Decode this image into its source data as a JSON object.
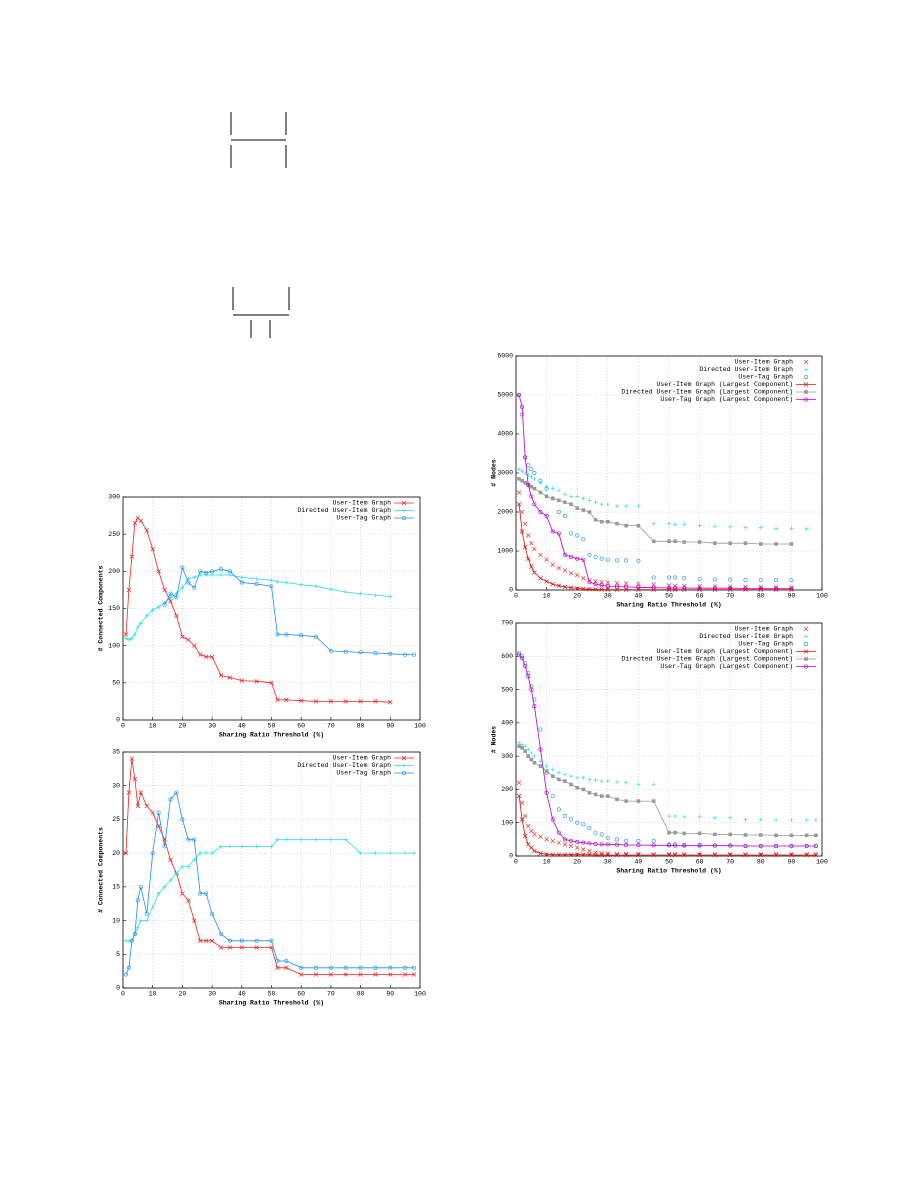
{
  "chart_data": [
    {
      "type": "line",
      "xlabel": "Sharing Ratio Threshold (%)",
      "ylabel": "# Connected Components",
      "x": [
        1,
        2,
        3,
        4,
        5,
        6,
        8,
        10,
        12,
        14,
        16,
        18,
        20,
        22,
        24,
        26,
        28,
        30,
        33,
        36,
        40,
        45,
        50,
        52,
        55,
        60,
        65,
        70,
        75,
        80,
        85,
        90,
        95,
        98
      ],
      "xlim": [
        0,
        100
      ],
      "xticks": [
        0,
        10,
        20,
        30,
        40,
        50,
        60,
        70,
        80,
        90,
        100
      ],
      "ylim": [
        0,
        300
      ],
      "yticks": [
        0,
        50,
        100,
        150,
        200,
        250,
        300
      ],
      "grid": true,
      "legend": "top-right",
      "series": [
        {
          "name": "User-Item Graph",
          "color": "#ee2222",
          "marker": "x",
          "line": true,
          "values": [
            115,
            175,
            220,
            265,
            272,
            268,
            255,
            230,
            200,
            175,
            160,
            140,
            112,
            108,
            100,
            88,
            85,
            85,
            60,
            57,
            53,
            52,
            50,
            27,
            27,
            26,
            25,
            25,
            25,
            25,
            25,
            24,
            null,
            null
          ]
        },
        {
          "name": "Directed User-Item Graph",
          "color": "#33dde0",
          "marker": "plus",
          "line": true,
          "values": [
            110,
            108,
            110,
            115,
            125,
            130,
            140,
            148,
            152,
            158,
            165,
            170,
            178,
            190,
            192,
            195,
            195,
            195,
            195,
            195,
            192,
            190,
            188,
            186,
            185,
            182,
            180,
            176,
            172,
            170,
            168,
            166,
            null,
            null
          ]
        },
        {
          "name": "User-Tag Graph",
          "color": "#1e8ff0",
          "marker": "circle",
          "line": true,
          "values": [
            null,
            null,
            null,
            null,
            null,
            null,
            null,
            null,
            null,
            155,
            170,
            165,
            205,
            185,
            178,
            200,
            198,
            200,
            203,
            200,
            185,
            183,
            180,
            115,
            115,
            114,
            112,
            93,
            92,
            91,
            90,
            89,
            88,
            88
          ]
        }
      ]
    },
    {
      "type": "line",
      "xlabel": "Sharing Ratio Threshold (%)",
      "ylabel": "# Connected Components",
      "x": [
        1,
        2,
        3,
        4,
        5,
        6,
        8,
        10,
        12,
        14,
        16,
        18,
        20,
        22,
        24,
        26,
        28,
        30,
        33,
        36,
        40,
        45,
        50,
        52,
        55,
        60,
        65,
        70,
        75,
        80,
        85,
        90,
        95,
        98
      ],
      "xlim": [
        0,
        100
      ],
      "xticks": [
        0,
        10,
        20,
        30,
        40,
        50,
        60,
        70,
        80,
        90,
        100
      ],
      "ylim": [
        0,
        35
      ],
      "yticks": [
        0,
        5,
        10,
        15,
        20,
        25,
        30,
        35
      ],
      "grid": true,
      "legend": "top-right",
      "series": [
        {
          "name": "User-Item Graph",
          "color": "#ee2222",
          "marker": "x",
          "line": true,
          "values": [
            20,
            29,
            34,
            31,
            27,
            29,
            27,
            26,
            24,
            22,
            19,
            17,
            14,
            13,
            10,
            7,
            7,
            7,
            6,
            6,
            6,
            6,
            6,
            3,
            3,
            2,
            2,
            2,
            2,
            2,
            2,
            2,
            2,
            2
          ]
        },
        {
          "name": "Directed User-Item Graph",
          "color": "#33dde0",
          "marker": "plus",
          "line": true,
          "values": [
            7,
            7,
            7,
            8,
            9,
            10,
            10,
            12,
            14,
            15,
            16,
            17,
            18,
            18,
            19,
            20,
            20,
            20,
            21,
            21,
            21,
            21,
            21,
            22,
            22,
            22,
            22,
            22,
            22,
            20,
            20,
            20,
            20,
            20
          ]
        },
        {
          "name": "User-Tag Graph",
          "color": "#1e8ff0",
          "marker": "circle",
          "line": true,
          "values": [
            2,
            3,
            7,
            8,
            13,
            15,
            11,
            20,
            26,
            21,
            28,
            29,
            25,
            22,
            22,
            14,
            14,
            11,
            8,
            7,
            7,
            7,
            7,
            4,
            4,
            3,
            3,
            3,
            3,
            3,
            3,
            3,
            3,
            3
          ]
        }
      ]
    },
    {
      "type": "line",
      "xlabel": "Sharing Ratio Threshold (%)",
      "ylabel": "# Nodes",
      "x": [
        1,
        2,
        3,
        4,
        5,
        6,
        8,
        10,
        12,
        14,
        16,
        18,
        20,
        22,
        24,
        26,
        28,
        30,
        33,
        36,
        40,
        45,
        50,
        52,
        55,
        60,
        65,
        70,
        75,
        80,
        85,
        90,
        95,
        98
      ],
      "xlim": [
        0,
        100
      ],
      "xticks": [
        0,
        10,
        20,
        30,
        40,
        50,
        60,
        70,
        80,
        90,
        100
      ],
      "ylim": [
        0,
        6000
      ],
      "yticks": [
        0,
        1000,
        2000,
        3000,
        4000,
        5000,
        6000
      ],
      "grid": true,
      "legend": "top-right",
      "series": [
        {
          "name": "User-Item Graph",
          "color": "#ee3333",
          "marker": "x",
          "line": false,
          "values": [
            2500,
            2000,
            1700,
            1400,
            1200,
            1050,
            900,
            780,
            650,
            560,
            500,
            430,
            380,
            300,
            250,
            220,
            200,
            190,
            180,
            170,
            160,
            140,
            120,
            110,
            100,
            95,
            90,
            85,
            80,
            75,
            70,
            65,
            null,
            null
          ]
        },
        {
          "name": "Directed User-Item Graph",
          "color": "#33dde0",
          "marker": "plus",
          "line": false,
          "values": [
            3100,
            3050,
            3000,
            2950,
            2900,
            2850,
            2750,
            2650,
            2600,
            2550,
            2450,
            2400,
            2400,
            2350,
            2300,
            2250,
            2200,
            2200,
            2150,
            2150,
            2150,
            1700,
            1700,
            1680,
            1680,
            1650,
            1630,
            1620,
            1600,
            1600,
            1580,
            1580,
            1570,
            null
          ]
        },
        {
          "name": "User-Tag Graph",
          "color": "#1e8ff0",
          "marker": "circle",
          "line": false,
          "values": [
            5000,
            4500,
            3400,
            3200,
            3100,
            3000,
            2800,
            2600,
            2350,
            2000,
            1900,
            1450,
            1400,
            1300,
            900,
            850,
            800,
            780,
            760,
            760,
            750,
            320,
            320,
            320,
            300,
            280,
            270,
            270,
            260,
            260,
            260,
            250,
            null,
            null
          ]
        },
        {
          "name": "User-Item Graph (Largest Component)",
          "color": "#dd1111",
          "marker": "x",
          "line": true,
          "values": [
            2200,
            1500,
            1100,
            800,
            600,
            450,
            300,
            220,
            150,
            110,
            80,
            60,
            40,
            30,
            20,
            15,
            12,
            10,
            10,
            10,
            10,
            10,
            10,
            10,
            10,
            10,
            10,
            10,
            10,
            10,
            10,
            10,
            null,
            null
          ]
        },
        {
          "name": "Directed User-Item Graph (Largest Component)",
          "color": "#999999",
          "marker": "square",
          "line": true,
          "values": [
            2850,
            2800,
            2750,
            2700,
            2650,
            2600,
            2500,
            2400,
            2350,
            2300,
            2250,
            2200,
            2100,
            2050,
            2000,
            1800,
            1750,
            1750,
            1700,
            1650,
            1650,
            1250,
            1250,
            1250,
            1230,
            1230,
            1200,
            1200,
            1200,
            1180,
            1180,
            1180,
            null,
            null
          ]
        },
        {
          "name": "User-Tag Graph (Largest Component)",
          "color": "#b000d0",
          "marker": "circle",
          "line": true,
          "values": [
            5000,
            4700,
            3400,
            2700,
            2400,
            2200,
            2000,
            1900,
            1500,
            1450,
            900,
            850,
            800,
            780,
            200,
            150,
            120,
            100,
            90,
            80,
            70,
            60,
            50,
            50,
            50,
            45,
            45,
            45,
            40,
            40,
            40,
            40,
            null,
            null
          ]
        }
      ]
    },
    {
      "type": "line",
      "xlabel": "Sharing Ratio Threshold (%)",
      "ylabel": "# Nodes",
      "x": [
        1,
        2,
        3,
        4,
        5,
        6,
        8,
        10,
        12,
        14,
        16,
        18,
        20,
        22,
        24,
        26,
        28,
        30,
        33,
        36,
        40,
        45,
        50,
        52,
        55,
        60,
        65,
        70,
        75,
        80,
        85,
        90,
        95,
        98
      ],
      "xlim": [
        0,
        100
      ],
      "xticks": [
        0,
        10,
        20,
        30,
        40,
        50,
        60,
        70,
        80,
        90,
        100
      ],
      "ylim": [
        0,
        700
      ],
      "yticks": [
        0,
        100,
        200,
        300,
        400,
        500,
        600,
        700
      ],
      "grid": true,
      "legend": "top-right",
      "series": [
        {
          "name": "User-Item Graph",
          "color": "#ee3333",
          "marker": "x",
          "line": false,
          "values": [
            220,
            160,
            120,
            90,
            75,
            65,
            58,
            50,
            45,
            40,
            35,
            30,
            25,
            20,
            15,
            10,
            8,
            7,
            6,
            6,
            6,
            5,
            5,
            5,
            5,
            5,
            5,
            5,
            5,
            5,
            5,
            5,
            5,
            5
          ]
        },
        {
          "name": "Directed User-Item Graph",
          "color": "#33dde0",
          "marker": "plus",
          "line": false,
          "values": [
            340,
            335,
            330,
            320,
            310,
            300,
            285,
            270,
            260,
            250,
            245,
            240,
            235,
            235,
            230,
            228,
            225,
            225,
            222,
            220,
            215,
            215,
            120,
            120,
            118,
            118,
            115,
            115,
            110,
            110,
            108,
            108,
            108,
            108
          ]
        },
        {
          "name": "User-Tag Graph",
          "color": "#1e8ff0",
          "marker": "circle",
          "line": false,
          "values": [
            610,
            600,
            580,
            550,
            510,
            470,
            380,
            250,
            180,
            140,
            120,
            110,
            100,
            95,
            85,
            70,
            65,
            55,
            50,
            45,
            45,
            45,
            35,
            35,
            33,
            33,
            32,
            32,
            30,
            30,
            30,
            30,
            30,
            30
          ]
        },
        {
          "name": "User-Item Graph (Largest Component)",
          "color": "#dd1111",
          "marker": "x",
          "line": true,
          "values": [
            180,
            110,
            60,
            35,
            25,
            15,
            8,
            5,
            4,
            4,
            4,
            4,
            4,
            4,
            4,
            3,
            3,
            3,
            3,
            3,
            3,
            3,
            3,
            3,
            3,
            3,
            3,
            3,
            3,
            3,
            3,
            3,
            3,
            3
          ]
        },
        {
          "name": "Directed User-Item Graph (Largest Component)",
          "color": "#999999",
          "marker": "square",
          "line": true,
          "values": [
            330,
            325,
            315,
            300,
            290,
            280,
            270,
            255,
            240,
            230,
            225,
            215,
            205,
            200,
            190,
            185,
            180,
            180,
            170,
            165,
            165,
            165,
            70,
            70,
            68,
            68,
            65,
            65,
            63,
            63,
            62,
            62,
            62,
            62
          ]
        },
        {
          "name": "User-Tag Graph (Largest Component)",
          "color": "#b000d0",
          "marker": "circle",
          "line": true,
          "values": [
            605,
            595,
            570,
            540,
            500,
            450,
            320,
            190,
            110,
            70,
            50,
            45,
            42,
            40,
            38,
            36,
            35,
            35,
            34,
            33,
            33,
            32,
            32,
            31,
            31,
            31,
            31,
            31,
            30,
            30,
            30,
            30,
            30,
            30
          ]
        }
      ]
    }
  ]
}
